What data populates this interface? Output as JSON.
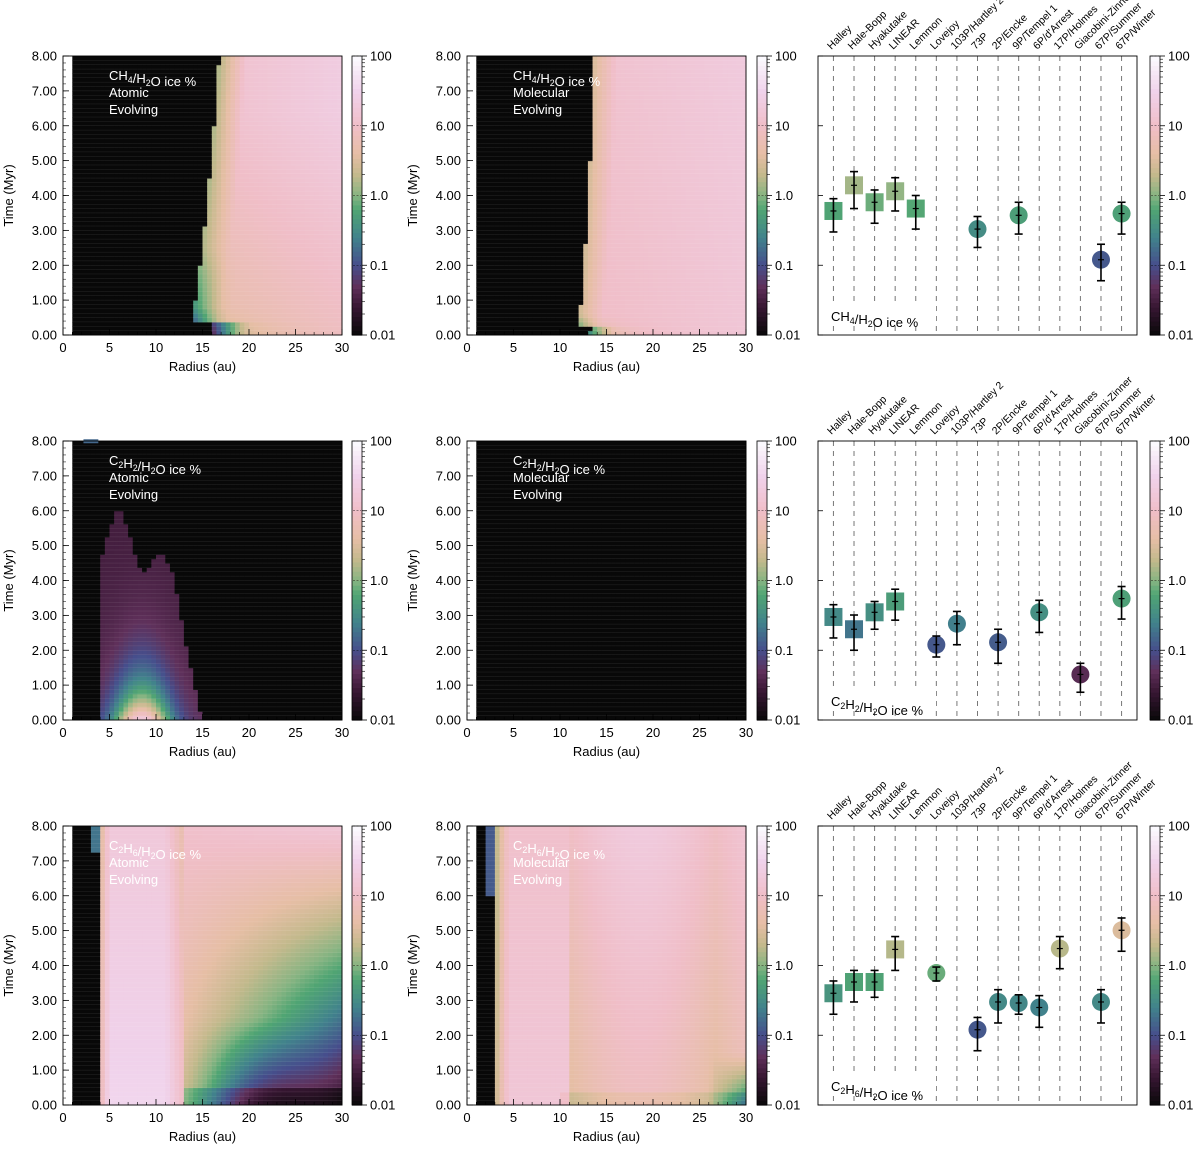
{
  "chart_data": {
    "type": "heatmap",
    "colorbar": {
      "scale": "log",
      "range": [
        0.01,
        100
      ],
      "tick_labels": [
        "100",
        "10",
        "1.0",
        "0.1",
        "0.01"
      ],
      "tick_values": [
        100,
        10,
        1,
        0.1,
        0.01
      ]
    },
    "maps": {
      "xlabel": "Radius (au)",
      "ylabel": "Time (Myr)",
      "xlim": [
        0,
        30
      ],
      "ylim": [
        0,
        8
      ],
      "x_tick_labels": [
        "0",
        "5",
        "10",
        "15",
        "20",
        "25",
        "30"
      ],
      "y_tick_labels": [
        "0.00",
        "1.00",
        "2.00",
        "3.00",
        "4.00",
        "5.00",
        "6.00",
        "7.00",
        "8.00"
      ]
    },
    "comets": [
      "Halley",
      "Hale-Bopp",
      "Hyakutake",
      "LINEAR",
      "Lemmon",
      "Lovejoy",
      "103P/Hartley 2",
      "73P",
      "2P/Encke",
      "9P/Tempel 1",
      "6P/d'Arrest",
      "17P/Holmes",
      "Giacobini-Zinner",
      "67P/Summer",
      "67P/Winter"
    ],
    "rows": [
      {
        "species_label": "CH4/H2O ice %",
        "panels": [
          {
            "model": "Atomic",
            "mode": "Evolving"
          },
          {
            "model": "Molecular",
            "mode": "Evolving"
          }
        ],
        "observations": [
          {
            "comet": "Halley",
            "value": 0.6,
            "low": 0.3,
            "high": 0.9,
            "marker": "square"
          },
          {
            "comet": "Hale-Bopp",
            "value": 1.4,
            "low": 0.65,
            "high": 2.2,
            "marker": "square"
          },
          {
            "comet": "Hyakutake",
            "value": 0.8,
            "low": 0.4,
            "high": 1.2,
            "marker": "square"
          },
          {
            "comet": "LINEAR",
            "value": 1.15,
            "low": 0.6,
            "high": 1.8,
            "marker": "square"
          },
          {
            "comet": "Lemmon",
            "value": 0.65,
            "low": 0.33,
            "high": 1.0,
            "marker": "square"
          },
          {
            "comet": "73P",
            "value": 0.33,
            "low": 0.18,
            "high": 0.5,
            "marker": "circle"
          },
          {
            "comet": "9P/Tempel 1",
            "value": 0.52,
            "low": 0.28,
            "high": 0.8,
            "marker": "circle"
          },
          {
            "comet": "67P/Summer",
            "value": 0.12,
            "low": 0.06,
            "high": 0.2,
            "marker": "circle"
          },
          {
            "comet": "67P/Winter",
            "value": 0.55,
            "low": 0.28,
            "high": 0.8,
            "marker": "circle"
          }
        ]
      },
      {
        "species_label": "C2H2/H2O ice %",
        "panels": [
          {
            "model": "Atomic",
            "mode": "Evolving"
          },
          {
            "model": "Molecular",
            "mode": "Evolving"
          }
        ],
        "observations": [
          {
            "comet": "Halley",
            "value": 0.3,
            "low": 0.15,
            "high": 0.45,
            "marker": "square"
          },
          {
            "comet": "Hale-Bopp",
            "value": 0.2,
            "low": 0.1,
            "high": 0.32,
            "marker": "square"
          },
          {
            "comet": "Hyakutake",
            "value": 0.35,
            "low": 0.2,
            "high": 0.5,
            "marker": "square"
          },
          {
            "comet": "LINEAR",
            "value": 0.5,
            "low": 0.27,
            "high": 0.75,
            "marker": "square"
          },
          {
            "comet": "Lovejoy",
            "value": 0.12,
            "low": 0.08,
            "high": 0.16,
            "marker": "circle"
          },
          {
            "comet": "103P/Hartley 2",
            "value": 0.24,
            "low": 0.12,
            "high": 0.36,
            "marker": "circle"
          },
          {
            "comet": "2P/Encke",
            "value": 0.13,
            "low": 0.065,
            "high": 0.2,
            "marker": "circle"
          },
          {
            "comet": "6P/d'Arrest",
            "value": 0.35,
            "low": 0.18,
            "high": 0.52,
            "marker": "circle"
          },
          {
            "comet": "Giacobini-Zinner",
            "value": 0.045,
            "low": 0.025,
            "high": 0.065,
            "marker": "circle"
          },
          {
            "comet": "67P/Winter",
            "value": 0.55,
            "low": 0.28,
            "high": 0.82,
            "marker": "circle"
          }
        ]
      },
      {
        "species_label": "C2H6/H2O ice %",
        "panels": [
          {
            "model": "Atomic",
            "mode": "Evolving"
          },
          {
            "model": "Molecular",
            "mode": "Evolving"
          }
        ],
        "observations": [
          {
            "comet": "Halley",
            "value": 0.4,
            "low": 0.2,
            "high": 0.6,
            "marker": "square"
          },
          {
            "comet": "Hale-Bopp",
            "value": 0.58,
            "low": 0.3,
            "high": 0.85,
            "marker": "square"
          },
          {
            "comet": "Hyakutake",
            "value": 0.58,
            "low": 0.35,
            "high": 0.85,
            "marker": "square"
          },
          {
            "comet": "LINEAR",
            "value": 1.7,
            "low": 0.85,
            "high": 2.6,
            "marker": "square"
          },
          {
            "comet": "Lovejoy",
            "value": 0.78,
            "low": 0.6,
            "high": 0.95,
            "marker": "circle"
          },
          {
            "comet": "73P",
            "value": 0.12,
            "low": 0.06,
            "high": 0.18,
            "marker": "circle"
          },
          {
            "comet": "2P/Encke",
            "value": 0.3,
            "low": 0.15,
            "high": 0.45,
            "marker": "circle"
          },
          {
            "comet": "9P/Tempel 1",
            "value": 0.29,
            "low": 0.2,
            "high": 0.38,
            "marker": "circle"
          },
          {
            "comet": "6P/d'Arrest",
            "value": 0.25,
            "low": 0.13,
            "high": 0.37,
            "marker": "circle"
          },
          {
            "comet": "17P/Holmes",
            "value": 1.75,
            "low": 0.9,
            "high": 2.6,
            "marker": "circle"
          },
          {
            "comet": "67P/Summer",
            "value": 0.3,
            "low": 0.15,
            "high": 0.45,
            "marker": "circle"
          },
          {
            "comet": "67P/Winter",
            "value": 3.2,
            "low": 1.6,
            "high": 4.8,
            "marker": "circle"
          }
        ]
      }
    ]
  }
}
